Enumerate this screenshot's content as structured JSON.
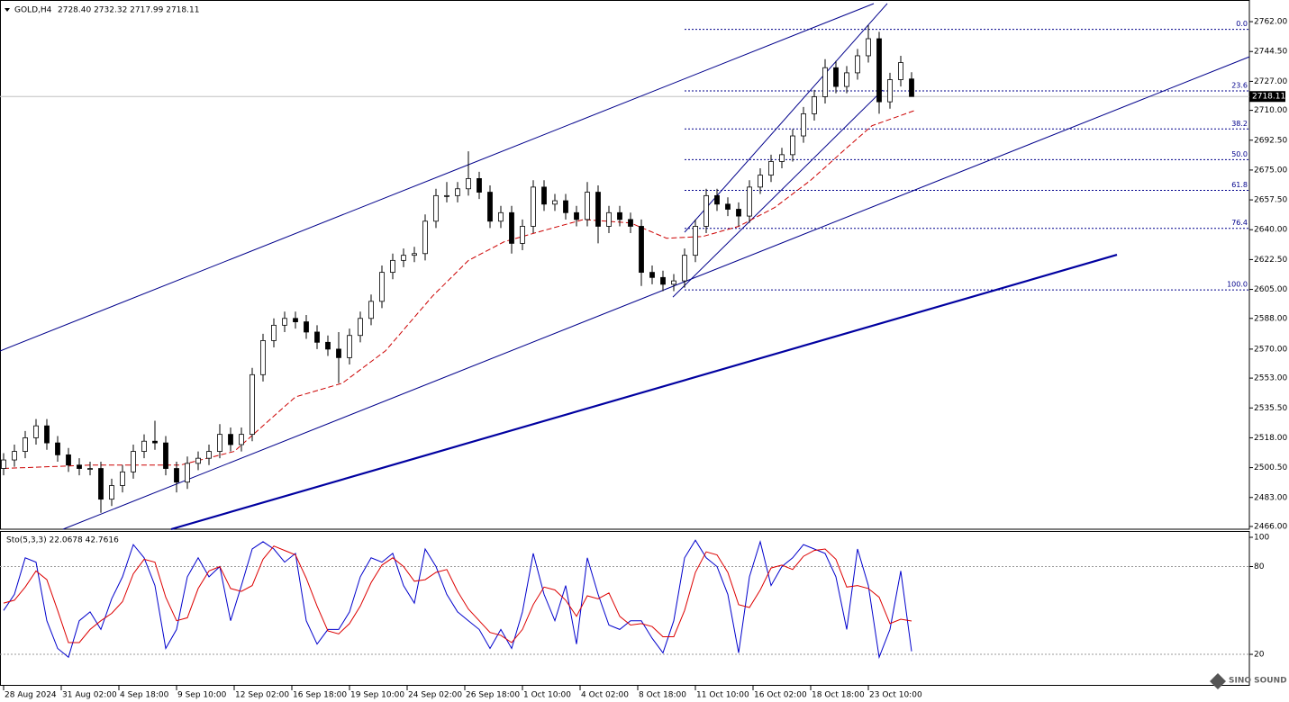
{
  "header": {
    "symbol": "GOLD,H4",
    "ohlc": "2728.40 2732.32 2717.99 2718.11"
  },
  "watermark": "SINO SOUND",
  "chart_data": [
    {
      "type": "candlestick",
      "x": [
        1,
        4,
        7,
        10,
        13,
        16,
        19,
        22,
        25,
        28,
        31,
        34,
        37,
        40,
        43,
        46,
        49,
        52,
        55,
        58,
        61,
        64,
        67,
        70,
        73,
        76,
        79,
        82,
        85,
        88,
        91,
        94,
        97,
        100,
        103,
        106,
        109,
        112,
        115,
        118,
        121,
        124,
        127,
        130,
        133,
        136,
        139,
        142,
        145,
        148,
        151,
        154,
        157,
        160,
        163,
        166,
        169,
        172,
        175,
        178,
        181,
        184,
        187,
        190,
        193,
        196,
        199,
        202,
        205,
        208,
        211,
        214,
        217,
        220,
        223,
        226,
        229,
        232,
        235,
        238,
        241,
        244,
        247,
        250,
        253
      ],
      "open": [
        2500,
        2505,
        2510,
        2518,
        2525,
        2515,
        2508,
        2502,
        2500,
        2500,
        2482,
        2490,
        2498,
        2510,
        2516,
        2515,
        2500,
        2492,
        2503,
        2506,
        2510,
        2520,
        2514,
        2520,
        2555,
        2575,
        2584,
        2588,
        2586,
        2580,
        2574,
        2570,
        2565,
        2578,
        2588,
        2598,
        2615,
        2622,
        2625,
        2626,
        2645,
        2660,
        2660,
        2664,
        2670,
        2662,
        2645,
        2650,
        2632,
        2642,
        2665,
        2655,
        2657,
        2650,
        2646,
        2662,
        2642,
        2650,
        2646,
        2642,
        2615,
        2612,
        2608,
        2610,
        2625,
        2642,
        2660,
        2655,
        2652,
        2648,
        2665,
        2672,
        2680,
        2684,
        2695,
        2708,
        2718,
        2735,
        2724,
        2732,
        2742,
        2752,
        2715,
        2728,
        2728.4
      ],
      "high": [
        2509,
        2514,
        2522,
        2529,
        2529,
        2519,
        2512,
        2506,
        2504,
        2504,
        2494,
        2502,
        2514,
        2520,
        2528,
        2519,
        2504,
        2507,
        2510,
        2514,
        2526,
        2524,
        2524,
        2559,
        2579,
        2588,
        2592,
        2592,
        2590,
        2584,
        2578,
        2580,
        2582,
        2592,
        2602,
        2619,
        2626,
        2629,
        2630,
        2649,
        2664,
        2668,
        2668,
        2686,
        2674,
        2666,
        2654,
        2654,
        2646,
        2669,
        2669,
        2661,
        2661,
        2654,
        2668,
        2666,
        2654,
        2654,
        2650,
        2646,
        2619,
        2616,
        2614,
        2629,
        2646,
        2664,
        2664,
        2659,
        2656,
        2669,
        2676,
        2684,
        2688,
        2699,
        2712,
        2722,
        2740,
        2739,
        2736,
        2746,
        2760,
        2756,
        2732,
        2742,
        2732.32
      ],
      "low": [
        2496,
        2501,
        2506,
        2514,
        2511,
        2504,
        2498,
        2496,
        2496,
        2474,
        2478,
        2486,
        2494,
        2506,
        2511,
        2496,
        2486,
        2488,
        2499,
        2502,
        2506,
        2510,
        2510,
        2516,
        2551,
        2571,
        2580,
        2582,
        2576,
        2570,
        2566,
        2550,
        2561,
        2574,
        2584,
        2594,
        2611,
        2618,
        2621,
        2622,
        2641,
        2656,
        2656,
        2660,
        2658,
        2641,
        2641,
        2626,
        2628,
        2638,
        2651,
        2651,
        2646,
        2642,
        2642,
        2632,
        2638,
        2642,
        2638,
        2607,
        2608,
        2604,
        2604,
        2606,
        2621,
        2638,
        2651,
        2648,
        2642,
        2644,
        2661,
        2668,
        2676,
        2680,
        2691,
        2704,
        2714,
        2720,
        2720,
        2728,
        2738,
        2708,
        2711,
        2724,
        2717.99
      ],
      "close": [
        2505,
        2510,
        2518,
        2525,
        2515,
        2508,
        2502,
        2500,
        2500,
        2482,
        2490,
        2498,
        2510,
        2516,
        2515,
        2500,
        2492,
        2503,
        2506,
        2510,
        2520,
        2514,
        2520,
        2555,
        2575,
        2584,
        2588,
        2586,
        2580,
        2574,
        2570,
        2565,
        2578,
        2588,
        2598,
        2615,
        2622,
        2625,
        2626,
        2645,
        2660,
        2660,
        2664,
        2670,
        2662,
        2645,
        2650,
        2632,
        2642,
        2665,
        2655,
        2657,
        2650,
        2646,
        2662,
        2642,
        2650,
        2646,
        2642,
        2615,
        2612,
        2608,
        2610,
        2625,
        2642,
        2660,
        2655,
        2652,
        2648,
        2665,
        2672,
        2680,
        2684,
        2695,
        2708,
        2718,
        2735,
        2724,
        2732,
        2742,
        2752,
        2715,
        2728,
        2738,
        2718.11
      ],
      "xlim": [
        0,
        346.75
      ],
      "ylim": [
        2464.4,
        2774.7
      ],
      "yticks": [
        {
          "value": 2762,
          "label": "2762.00"
        },
        {
          "value": 2744.5,
          "label": "2744.50"
        },
        {
          "value": 2727,
          "label": "2727.00"
        },
        {
          "value": 2710,
          "label": "2710.00"
        },
        {
          "value": 2692.5,
          "label": "2692.50"
        },
        {
          "value": 2675,
          "label": "2675.00"
        },
        {
          "value": 2657.5,
          "label": "2657.50"
        },
        {
          "value": 2640,
          "label": "2640.00"
        },
        {
          "value": 2622.5,
          "label": "2622.50"
        },
        {
          "value": 2605,
          "label": "2605.00"
        },
        {
          "value": 2588,
          "label": "2588.00"
        },
        {
          "value": 2570,
          "label": "2570.00"
        },
        {
          "value": 2553,
          "label": "2553.00"
        },
        {
          "value": 2535.5,
          "label": "2535.50"
        },
        {
          "value": 2518,
          "label": "2518.00"
        },
        {
          "value": 2500.5,
          "label": "2500.50"
        },
        {
          "value": 2483,
          "label": "2483.00"
        },
        {
          "value": 2466,
          "label": "2466.00"
        }
      ],
      "xticks": [
        {
          "value": 1,
          "label": "28 Aug 2024"
        },
        {
          "value": 17,
          "label": "31 Aug 02:00"
        },
        {
          "value": 33,
          "label": "4 Sep 18:00"
        },
        {
          "value": 49,
          "label": "9 Sep 10:00"
        },
        {
          "value": 65,
          "label": "12 Sep 02:00"
        },
        {
          "value": 81,
          "label": "16 Sep 18:00"
        },
        {
          "value": 97,
          "label": "19 Sep 10:00"
        },
        {
          "value": 113,
          "label": "24 Sep 02:00"
        },
        {
          "value": 129,
          "label": "26 Sep 18:00"
        },
        {
          "value": 145,
          "label": "1 Oct 10:00"
        },
        {
          "value": 161,
          "label": "4 Oct 02:00"
        },
        {
          "value": 177,
          "label": "8 Oct 18:00"
        },
        {
          "value": 193,
          "label": "11 Oct 10:00"
        },
        {
          "value": 209,
          "label": "16 Oct 02:00"
        },
        {
          "value": 225,
          "label": "18 Oct 18:00"
        },
        {
          "value": 241,
          "label": "23 Oct 10:00"
        }
      ],
      "moving_average": {
        "color": "#cc0000",
        "x": [
          1,
          25,
          50,
          65,
          82,
          95,
          107,
          120,
          130,
          140,
          150,
          162,
          175,
          185,
          195,
          205,
          215,
          225,
          235,
          242,
          254
        ],
        "values": [
          2500,
          2502,
          2502,
          2510,
          2542,
          2550,
          2569,
          2601,
          2622,
          2633,
          2639,
          2646,
          2644,
          2635,
          2636,
          2642,
          2653,
          2669,
          2688,
          2701,
          2710
        ]
      },
      "trendlines": [
        {
          "color": "#00008b",
          "width": 1,
          "x": [
            0,
            242.5
          ],
          "y": [
            2568.9,
            2772.6
          ]
        },
        {
          "color": "#00008b",
          "width": 1,
          "x": [
            17.5,
            346.75
          ],
          "y": [
            2464.4,
            2741.4
          ]
        },
        {
          "color": "#00008b",
          "width": 1,
          "x": [
            190,
            246.25
          ],
          "y": [
            2638.5,
            2772.6
          ]
        },
        {
          "color": "#00008b",
          "width": 1,
          "x": [
            186.75,
            245
          ],
          "y": [
            2600.5,
            2721.9
          ]
        },
        {
          "color": "#0000a0",
          "width": 2.2,
          "x": [
            47.5,
            310
          ],
          "y": [
            2464.4,
            2625.3
          ]
        }
      ],
      "fibonacci": {
        "color": "#00008b",
        "x_start": 190,
        "levels": [
          {
            "label": "0.0",
            "value": 2757.5
          },
          {
            "label": "23.6",
            "value": 2721.4
          },
          {
            "label": "38.2",
            "value": 2699.1
          },
          {
            "label": "50.0",
            "value": 2681.1
          },
          {
            "label": "61.8",
            "value": 2663.1
          },
          {
            "label": "76.4",
            "value": 2640.8
          },
          {
            "label": "100.0",
            "value": 2604.7
          }
        ]
      },
      "price_line_color": "#c0c0c0"
    },
    {
      "type": "line",
      "title": "Sto(5,3,3) 22.0678 42.7616",
      "x": [
        1,
        4,
        7,
        10,
        13,
        16,
        19,
        22,
        25,
        28,
        31,
        34,
        37,
        40,
        43,
        46,
        49,
        52,
        55,
        58,
        61,
        64,
        67,
        70,
        73,
        76,
        79,
        82,
        85,
        88,
        91,
        94,
        97,
        100,
        103,
        106,
        109,
        112,
        115,
        118,
        121,
        124,
        127,
        130,
        133,
        136,
        139,
        142,
        145,
        148,
        151,
        154,
        157,
        160,
        163,
        166,
        169,
        172,
        175,
        178,
        181,
        184,
        187,
        190,
        193,
        196,
        199,
        202,
        205,
        208,
        211,
        214,
        217,
        220,
        223,
        226,
        229,
        232,
        235,
        238,
        241,
        244,
        247,
        250,
        253
      ],
      "series": [
        {
          "color": "#0000cc",
          "values": [
            50,
            61,
            86,
            83,
            43,
            24,
            18,
            43,
            49,
            37,
            58,
            73,
            95,
            86,
            67,
            24,
            37,
            73,
            86,
            73,
            80,
            43,
            67,
            92,
            97,
            92,
            83,
            89,
            43,
            27,
            37,
            37,
            49,
            73,
            86,
            83,
            89,
            67,
            55,
            92,
            80,
            61,
            49,
            43,
            37,
            24,
            37,
            24,
            49,
            89,
            61,
            43,
            67,
            27,
            86,
            61,
            40,
            37,
            43,
            43,
            31,
            21,
            43,
            86,
            98,
            86,
            80,
            61,
            21,
            73,
            97,
            67,
            80,
            86,
            95,
            92,
            89,
            73,
            37,
            92,
            67,
            18,
            37,
            77,
            22.0678
          ]
        },
        {
          "color": "#dd0000",
          "values": [
            55,
            57,
            66,
            77,
            71,
            50,
            28,
            28,
            37,
            43,
            48,
            56,
            75,
            85,
            83,
            59,
            43,
            45,
            65,
            77,
            80,
            65,
            63,
            67,
            85,
            94,
            91,
            88,
            72,
            53,
            36,
            34,
            41,
            53,
            69,
            81,
            86,
            80,
            70,
            71,
            76,
            78,
            63,
            51,
            43,
            35,
            33,
            28,
            37,
            54,
            66,
            64,
            57,
            46,
            60,
            58,
            62,
            46,
            40,
            41,
            39,
            32,
            32,
            50,
            76,
            90,
            88,
            76,
            54,
            52,
            64,
            79,
            81,
            78,
            87,
            91,
            92,
            85,
            66,
            67,
            65,
            59,
            41,
            44,
            42.7616
          ]
        }
      ],
      "ylim": [
        -1.5,
        104.3
      ],
      "yticks": [
        100,
        80,
        20
      ],
      "levels": [
        80,
        20
      ]
    }
  ]
}
